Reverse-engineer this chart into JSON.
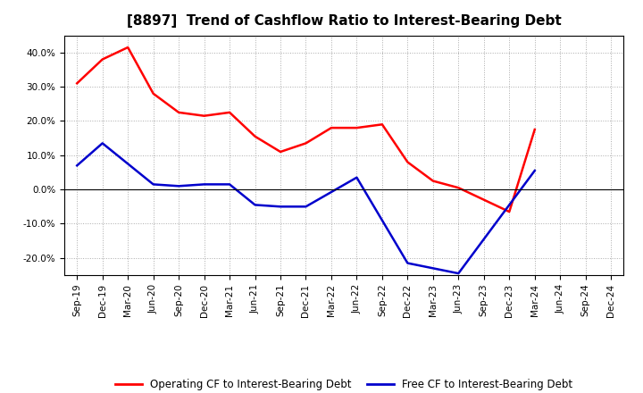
{
  "title": "[8897]  Trend of Cashflow Ratio to Interest-Bearing Debt",
  "x_labels": [
    "Sep-19",
    "Dec-19",
    "Mar-20",
    "Jun-20",
    "Sep-20",
    "Dec-20",
    "Mar-21",
    "Jun-21",
    "Sep-21",
    "Dec-21",
    "Mar-22",
    "Jun-22",
    "Sep-22",
    "Dec-22",
    "Mar-23",
    "Jun-23",
    "Sep-23",
    "Dec-23",
    "Mar-24",
    "Jun-24",
    "Sep-24",
    "Dec-24"
  ],
  "op_raw": [
    31.0,
    38.0,
    41.5,
    28.0,
    22.5,
    21.5,
    22.5,
    15.5,
    11.0,
    13.5,
    18.0,
    18.0,
    19.0,
    8.0,
    2.5,
    0.5,
    -3.0,
    -6.5,
    17.5,
    null,
    null,
    null
  ],
  "fr_raw": [
    7.0,
    13.5,
    null,
    1.5,
    1.0,
    1.5,
    1.5,
    -4.5,
    -5.0,
    -5.0,
    null,
    3.5,
    null,
    -21.5,
    null,
    -24.5,
    null,
    null,
    5.5,
    null,
    null,
    null
  ],
  "ylim": [
    -25,
    45
  ],
  "yticks": [
    -20,
    -10,
    0,
    10,
    20,
    30,
    40
  ],
  "operating_color": "#ff0000",
  "free_color": "#0000cc",
  "background_color": "#ffffff",
  "grid_color": "#aaaaaa",
  "title_fontsize": 11,
  "tick_fontsize": 7.5,
  "legend_fontsize": 8.5
}
